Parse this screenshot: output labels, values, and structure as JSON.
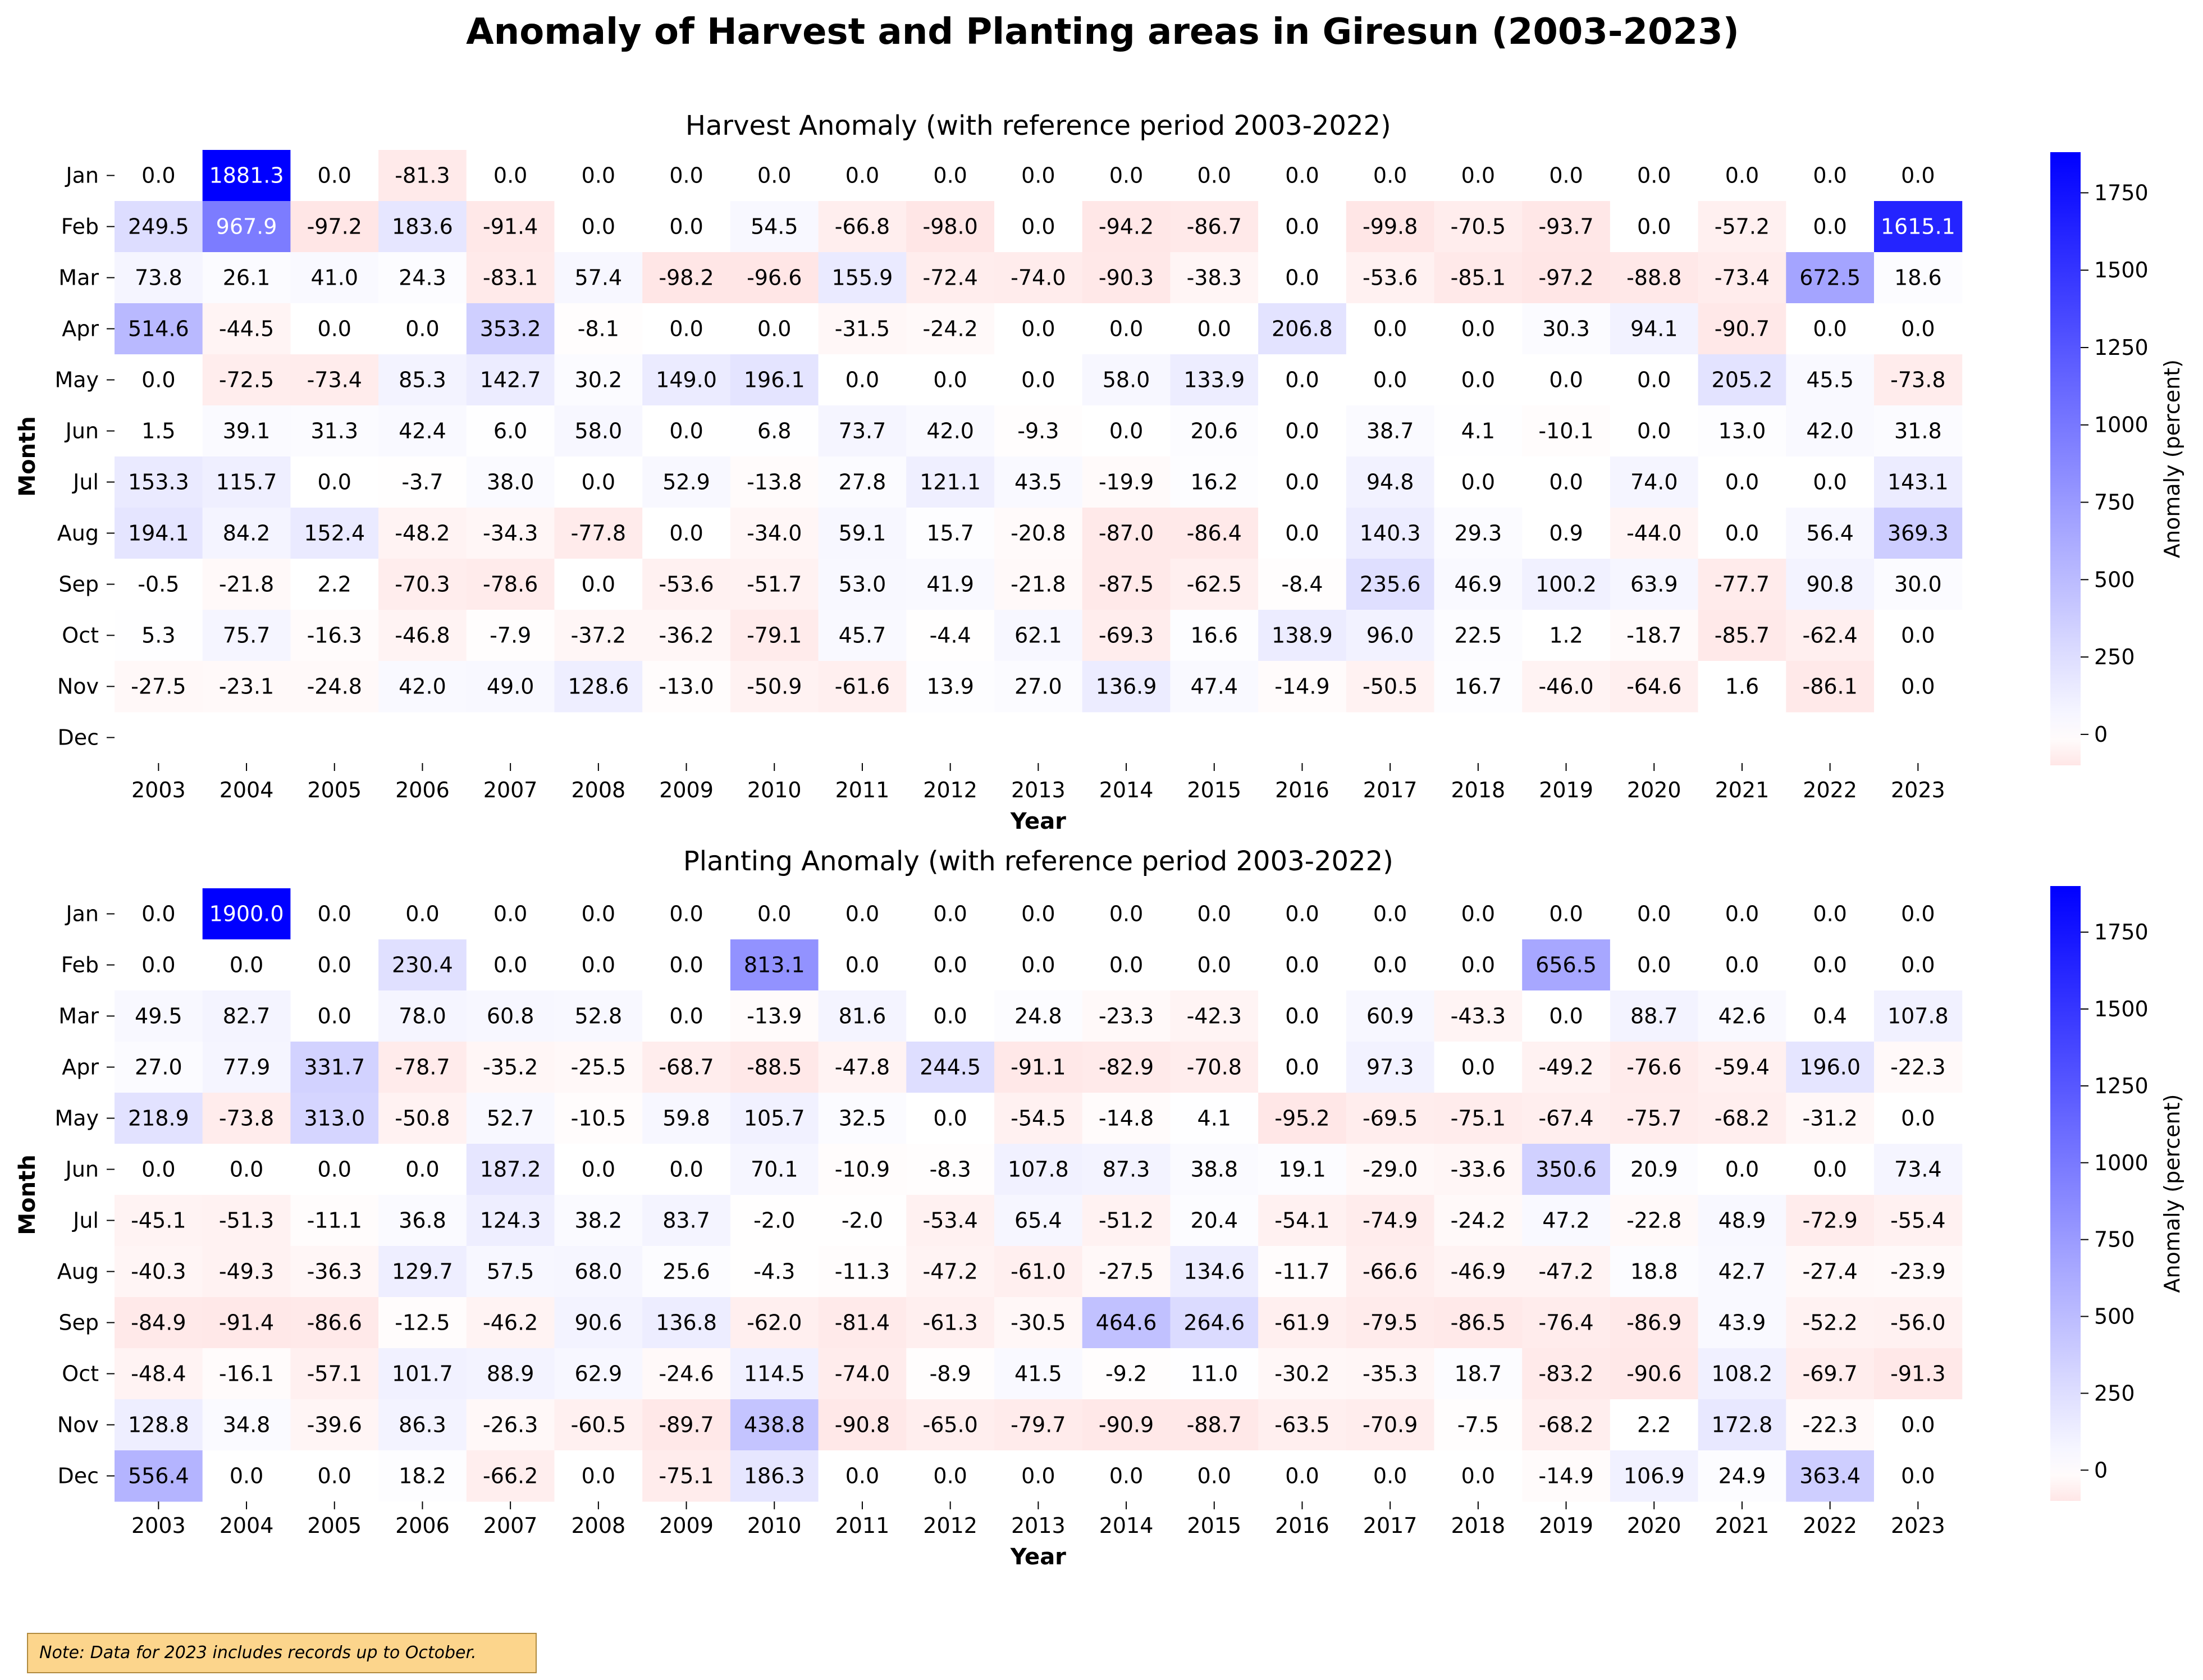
{
  "title": "Anomaly of Harvest and Planting areas in Giresun (2003-2023)",
  "note": "Note: Data for 2023 includes records up to October.",
  "colors": {
    "negative": "#ff0000",
    "zero": "#ffffff",
    "positive": "#0000ff"
  },
  "chart_data": [
    {
      "type": "heatmap",
      "title": "Harvest Anomaly (with reference period 2003-2022)",
      "xlabel": "Year",
      "ylabel": "Month",
      "colorbar_label": "Anomaly (percent)",
      "colorbar_ticks": [
        0,
        250,
        500,
        750,
        1000,
        1250,
        1500,
        1750
      ],
      "vmin": -100,
      "vmax": 1881.3,
      "x": [
        "2003",
        "2004",
        "2005",
        "2006",
        "2007",
        "2008",
        "2009",
        "2010",
        "2011",
        "2012",
        "2013",
        "2014",
        "2015",
        "2016",
        "2017",
        "2018",
        "2019",
        "2020",
        "2021",
        "2022",
        "2023"
      ],
      "y": [
        "Jan",
        "Feb",
        "Mar",
        "Apr",
        "May",
        "Jun",
        "Jul",
        "Aug",
        "Sep",
        "Oct",
        "Nov",
        "Dec"
      ],
      "values": [
        [
          "0.0",
          "1881.3",
          "0.0",
          "-81.3",
          "0.0",
          "0.0",
          "0.0",
          "0.0",
          "0.0",
          "0.0",
          "0.0",
          "0.0",
          "0.0",
          "0.0",
          "0.0",
          "0.0",
          "0.0",
          "0.0",
          "0.0",
          "0.0",
          "0.0"
        ],
        [
          "249.5",
          "967.9",
          "-97.2",
          "183.6",
          "-91.4",
          "0.0",
          "0.0",
          "54.5",
          "-66.8",
          "-98.0",
          "0.0",
          "-94.2",
          "-86.7",
          "0.0",
          "-99.8",
          "-70.5",
          "-93.7",
          "0.0",
          "-57.2",
          "0.0",
          "1615.1"
        ],
        [
          "73.8",
          "26.1",
          "41.0",
          "24.3",
          "-83.1",
          "57.4",
          "-98.2",
          "-96.6",
          "155.9",
          "-72.4",
          "-74.0",
          "-90.3",
          "-38.3",
          "0.0",
          "-53.6",
          "-85.1",
          "-97.2",
          "-88.8",
          "-73.4",
          "672.5",
          "18.6"
        ],
        [
          "514.6",
          "-44.5",
          "0.0",
          "0.0",
          "353.2",
          "-8.1",
          "0.0",
          "0.0",
          "-31.5",
          "-24.2",
          "0.0",
          "0.0",
          "0.0",
          "206.8",
          "0.0",
          "0.0",
          "30.3",
          "94.1",
          "-90.7",
          "0.0",
          "0.0"
        ],
        [
          "0.0",
          "-72.5",
          "-73.4",
          "85.3",
          "142.7",
          "30.2",
          "149.0",
          "196.1",
          "0.0",
          "0.0",
          "0.0",
          "58.0",
          "133.9",
          "0.0",
          "0.0",
          "0.0",
          "0.0",
          "0.0",
          "205.2",
          "45.5",
          "-73.8"
        ],
        [
          "1.5",
          "39.1",
          "31.3",
          "42.4",
          "6.0",
          "58.0",
          "0.0",
          "6.8",
          "73.7",
          "42.0",
          "-9.3",
          "0.0",
          "20.6",
          "0.0",
          "38.7",
          "4.1",
          "-10.1",
          "0.0",
          "13.0",
          "42.0",
          "31.8"
        ],
        [
          "153.3",
          "115.7",
          "0.0",
          "-3.7",
          "38.0",
          "0.0",
          "52.9",
          "-13.8",
          "27.8",
          "121.1",
          "43.5",
          "-19.9",
          "16.2",
          "0.0",
          "94.8",
          "0.0",
          "0.0",
          "74.0",
          "0.0",
          "0.0",
          "143.1"
        ],
        [
          "194.1",
          "84.2",
          "152.4",
          "-48.2",
          "-34.3",
          "-77.8",
          "0.0",
          "-34.0",
          "59.1",
          "15.7",
          "-20.8",
          "-87.0",
          "-86.4",
          "0.0",
          "140.3",
          "29.3",
          "0.9",
          "-44.0",
          "0.0",
          "56.4",
          "369.3"
        ],
        [
          "-0.5",
          "-21.8",
          "2.2",
          "-70.3",
          "-78.6",
          "0.0",
          "-53.6",
          "-51.7",
          "53.0",
          "41.9",
          "-21.8",
          "-87.5",
          "-62.5",
          "-8.4",
          "235.6",
          "46.9",
          "100.2",
          "63.9",
          "-77.7",
          "90.8",
          "30.0"
        ],
        [
          "5.3",
          "75.7",
          "-16.3",
          "-46.8",
          "-7.9",
          "-37.2",
          "-36.2",
          "-79.1",
          "45.7",
          "-4.4",
          "62.1",
          "-69.3",
          "16.6",
          "138.9",
          "96.0",
          "22.5",
          "1.2",
          "-18.7",
          "-85.7",
          "-62.4",
          "0.0"
        ],
        [
          "-27.5",
          "-23.1",
          "-24.8",
          "42.0",
          "49.0",
          "128.6",
          "-13.0",
          "-50.9",
          "-61.6",
          "13.9",
          "27.0",
          "136.9",
          "47.4",
          "-14.9",
          "-50.5",
          "16.7",
          "-46.0",
          "-64.6",
          "1.6",
          "-86.1",
          "0.0"
        ],
        [
          null,
          null,
          null,
          null,
          null,
          null,
          null,
          null,
          null,
          null,
          null,
          null,
          null,
          null,
          null,
          null,
          null,
          null,
          null,
          null,
          null
        ]
      ]
    },
    {
      "type": "heatmap",
      "title": "Planting Anomaly (with reference period 2003-2022)",
      "xlabel": "Year",
      "ylabel": "Month",
      "colorbar_label": "Anomaly (percent)",
      "colorbar_ticks": [
        0,
        250,
        500,
        750,
        1000,
        1250,
        1500,
        1750
      ],
      "vmin": -100,
      "vmax": 1900.0,
      "x": [
        "2003",
        "2004",
        "2005",
        "2006",
        "2007",
        "2008",
        "2009",
        "2010",
        "2011",
        "2012",
        "2013",
        "2014",
        "2015",
        "2016",
        "2017",
        "2018",
        "2019",
        "2020",
        "2021",
        "2022",
        "2023"
      ],
      "y": [
        "Jan",
        "Feb",
        "Mar",
        "Apr",
        "May",
        "Jun",
        "Jul",
        "Aug",
        "Sep",
        "Oct",
        "Nov",
        "Dec"
      ],
      "values": [
        [
          "0.0",
          "1900.0",
          "0.0",
          "0.0",
          "0.0",
          "0.0",
          "0.0",
          "0.0",
          "0.0",
          "0.0",
          "0.0",
          "0.0",
          "0.0",
          "0.0",
          "0.0",
          "0.0",
          "0.0",
          "0.0",
          "0.0",
          "0.0",
          "0.0"
        ],
        [
          "0.0",
          "0.0",
          "0.0",
          "230.4",
          "0.0",
          "0.0",
          "0.0",
          "813.1",
          "0.0",
          "0.0",
          "0.0",
          "0.0",
          "0.0",
          "0.0",
          "0.0",
          "0.0",
          "656.5",
          "0.0",
          "0.0",
          "0.0",
          "0.0"
        ],
        [
          "49.5",
          "82.7",
          "0.0",
          "78.0",
          "60.8",
          "52.8",
          "0.0",
          "-13.9",
          "81.6",
          "0.0",
          "24.8",
          "-23.3",
          "-42.3",
          "0.0",
          "60.9",
          "-43.3",
          "0.0",
          "88.7",
          "42.6",
          "0.4",
          "107.8"
        ],
        [
          "27.0",
          "77.9",
          "331.7",
          "-78.7",
          "-35.2",
          "-25.5",
          "-68.7",
          "-88.5",
          "-47.8",
          "244.5",
          "-91.1",
          "-82.9",
          "-70.8",
          "0.0",
          "97.3",
          "0.0",
          "-49.2",
          "-76.6",
          "-59.4",
          "196.0",
          "-22.3"
        ],
        [
          "218.9",
          "-73.8",
          "313.0",
          "-50.8",
          "52.7",
          "-10.5",
          "59.8",
          "105.7",
          "32.5",
          "0.0",
          "-54.5",
          "-14.8",
          "4.1",
          "-95.2",
          "-69.5",
          "-75.1",
          "-67.4",
          "-75.7",
          "-68.2",
          "-31.2",
          "0.0"
        ],
        [
          "0.0",
          "0.0",
          "0.0",
          "0.0",
          "187.2",
          "0.0",
          "0.0",
          "70.1",
          "-10.9",
          "-8.3",
          "107.8",
          "87.3",
          "38.8",
          "19.1",
          "-29.0",
          "-33.6",
          "350.6",
          "20.9",
          "0.0",
          "0.0",
          "73.4"
        ],
        [
          "-45.1",
          "-51.3",
          "-11.1",
          "36.8",
          "124.3",
          "38.2",
          "83.7",
          "-2.0",
          "-2.0",
          "-53.4",
          "65.4",
          "-51.2",
          "20.4",
          "-54.1",
          "-74.9",
          "-24.2",
          "47.2",
          "-22.8",
          "48.9",
          "-72.9",
          "-55.4"
        ],
        [
          "-40.3",
          "-49.3",
          "-36.3",
          "129.7",
          "57.5",
          "68.0",
          "25.6",
          "-4.3",
          "-11.3",
          "-47.2",
          "-61.0",
          "-27.5",
          "134.6",
          "-11.7",
          "-66.6",
          "-46.9",
          "-47.2",
          "18.8",
          "42.7",
          "-27.4",
          "-23.9"
        ],
        [
          "-84.9",
          "-91.4",
          "-86.6",
          "-12.5",
          "-46.2",
          "90.6",
          "136.8",
          "-62.0",
          "-81.4",
          "-61.3",
          "-30.5",
          "464.6",
          "264.6",
          "-61.9",
          "-79.5",
          "-86.5",
          "-76.4",
          "-86.9",
          "43.9",
          "-52.2",
          "-56.0"
        ],
        [
          "-48.4",
          "-16.1",
          "-57.1",
          "101.7",
          "88.9",
          "62.9",
          "-24.6",
          "114.5",
          "-74.0",
          "-8.9",
          "41.5",
          "-9.2",
          "11.0",
          "-30.2",
          "-35.3",
          "18.7",
          "-83.2",
          "-90.6",
          "108.2",
          "-69.7",
          "-91.3"
        ],
        [
          "128.8",
          "34.8",
          "-39.6",
          "86.3",
          "-26.3",
          "-60.5",
          "-89.7",
          "438.8",
          "-90.8",
          "-65.0",
          "-79.7",
          "-90.9",
          "-88.7",
          "-63.5",
          "-70.9",
          "-7.5",
          "-68.2",
          "2.2",
          "172.8",
          "-22.3",
          "0.0"
        ],
        [
          "556.4",
          "0.0",
          "0.0",
          "18.2",
          "-66.2",
          "0.0",
          "-75.1",
          "186.3",
          "0.0",
          "0.0",
          "0.0",
          "0.0",
          "0.0",
          "0.0",
          "0.0",
          "0.0",
          "-14.9",
          "106.9",
          "24.9",
          "363.4",
          "0.0"
        ]
      ]
    }
  ]
}
